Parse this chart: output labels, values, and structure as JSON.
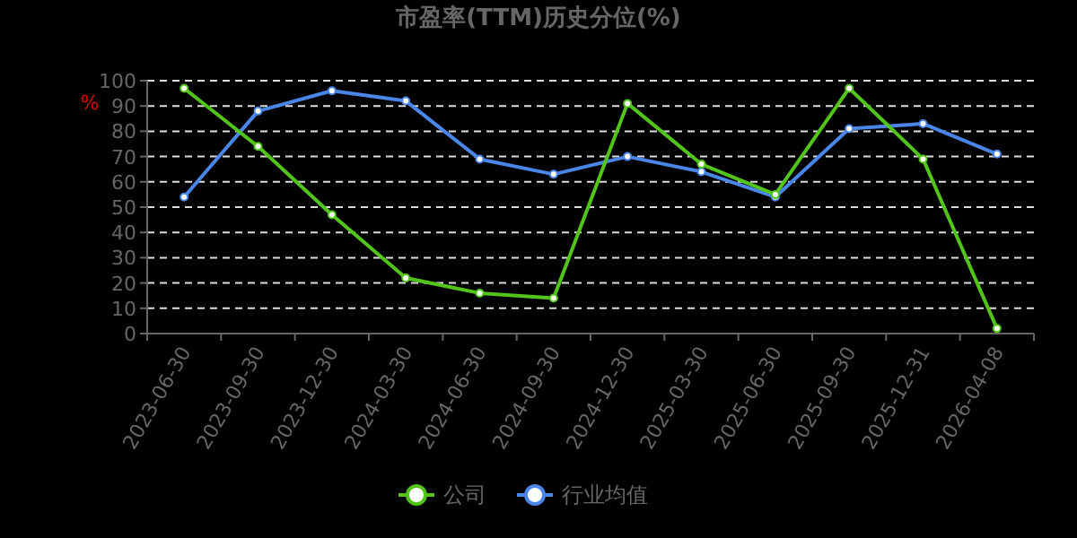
{
  "chart_data": {
    "type": "line",
    "title": "市盈率(TTM)历史分位(%)",
    "ylabel": "%",
    "categories": [
      "2023-06-30",
      "2023-09-30",
      "2023-12-30",
      "2024-03-30",
      "2024-06-30",
      "2024-09-30",
      "2024-12-30",
      "2025-03-30",
      "2025-06-30",
      "2025-09-30",
      "2025-12-31",
      "2026-04-08"
    ],
    "series": [
      {
        "name": "公司",
        "color": "#52c41a",
        "values": [
          97,
          74,
          47,
          22,
          16,
          14,
          91,
          67,
          55,
          97,
          69,
          2
        ]
      },
      {
        "name": "行业均值",
        "color": "#4a86e8",
        "values": [
          54,
          88,
          96,
          92,
          69,
          63,
          70,
          64,
          54,
          81,
          83,
          71
        ]
      }
    ],
    "ylim": [
      0,
      100
    ],
    "yticks": [
      0,
      10,
      20,
      30,
      40,
      50,
      60,
      70,
      80,
      90,
      100
    ],
    "grid": "y",
    "legend": "bottom",
    "marker": "circle",
    "line_style": "solid"
  }
}
